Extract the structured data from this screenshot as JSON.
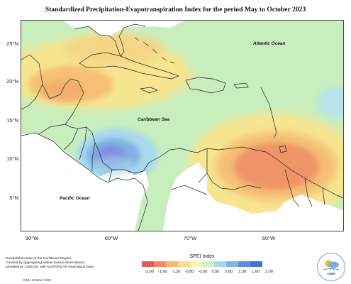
{
  "title": "Standardized Precipitation-Evapotranspiration Index for the period May to October 2023",
  "map": {
    "latitude_labels": [
      "25°N",
      "20°N",
      "15°N",
      "10°N",
      "5°N"
    ],
    "longitude_labels": [
      "90°W",
      "80°W",
      "70°W",
      "60°W"
    ],
    "ocean_labels": {
      "atlantic": "Atlantic Ocean",
      "caribbean": "Caribbean Sea",
      "pacific": "Pacific Ocean"
    },
    "colors": {
      "land_and_sea_background": "#c8eebe",
      "dry_moderate": "#f7e58f",
      "dry_strong": "#f5b56e",
      "dry_severe": "#ef8f66",
      "wet_moderate": "#a9d9ec",
      "wet_strong": "#6ea6df",
      "wet_severe": "#7f93e6",
      "land_outline": "#222222",
      "unshaded_land": "#ffffff"
    }
  },
  "legend": {
    "title": "SPEI Index",
    "labels": [
      "-2.00",
      "-1.60",
      "-1.30",
      "-0.80",
      "-0.50",
      "0.50",
      "0.80",
      "1.30",
      "1.60",
      "2.00"
    ],
    "colors": [
      "#e05a5a",
      "#ee8a68",
      "#f5b86e",
      "#f8dc88",
      "#faf3b0",
      "#d2f0c6",
      "#a8d7ee",
      "#79b5e5",
      "#5a8fdc",
      "#4a6fd0"
    ]
  },
  "credit": {
    "lines": [
      "Precipitation Map of the Caribbean Region.",
      "Created by aggregating station based observations,",
      "provided by CariCOF, with NCEP/NCAR Reanalysis Data."
    ],
    "footer": "CIMH October 2023"
  },
  "logo": {
    "text": "CIMH",
    "icon": "sun-rain-cloud-logo-icon"
  }
}
